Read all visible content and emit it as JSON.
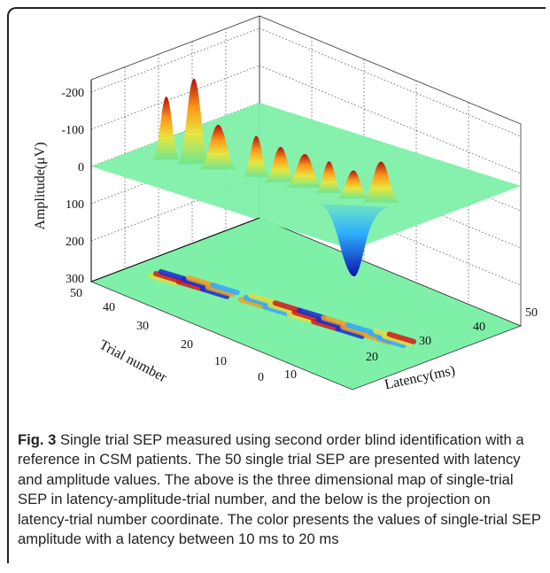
{
  "chart_data": {
    "type": "surface",
    "description_text": "",
    "axes": {
      "x": {
        "label": "Latency(ms)",
        "ticks": [
          "10",
          "20",
          "30",
          "40",
          "50"
        ]
      },
      "y": {
        "label": "Trial number",
        "ticks": [
          "0",
          "10",
          "20",
          "30",
          "40",
          "50"
        ]
      },
      "z": {
        "label": "Amplitude(μV)",
        "ticks": [
          "-200",
          "-100",
          "0",
          "100",
          "200",
          "300"
        ]
      }
    },
    "peaks": [
      {
        "latency": 13,
        "trial": 44,
        "amplitude": 170
      },
      {
        "latency": 15,
        "trial": 40,
        "amplitude": 230
      },
      {
        "latency": 16,
        "trial": 36,
        "amplitude": 120
      },
      {
        "latency": 18,
        "trial": 30,
        "amplitude": 110
      },
      {
        "latency": 19,
        "trial": 26,
        "amplitude": 95
      },
      {
        "latency": 20,
        "trial": 22,
        "amplitude": 90
      },
      {
        "latency": 21,
        "trial": 18,
        "amplitude": 85
      },
      {
        "latency": 22,
        "trial": 14,
        "amplitude": 75
      },
      {
        "latency": 24,
        "trial": 10,
        "amplitude": 110
      },
      {
        "latency": 25,
        "trial": 8,
        "amplitude": -260
      }
    ]
  },
  "caption": {
    "label": "Fig. 3",
    "text": " Single trial SEP measured using second order blind identification with a reference in CSM patients. The 50 single trial SEP are presented with latency and amplitude values. The above is the three dimensional map of single-trial SEP in latency-amplitude-trial number, and the below is the projection on latency-trial number coordinate. The color presents the values of single-trial SEP amplitude with a latency between 10 ms to 20 ms"
  }
}
